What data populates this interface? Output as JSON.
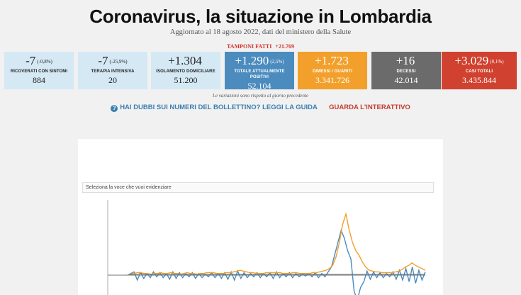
{
  "header": {
    "title": "Coronavirus, la situazione in Lombardia",
    "subtitle": "Aggiornato al 18 agosto 2022, dati del ministero della Salute",
    "tamponi_label": "TAMPONI FATTI",
    "tamponi_value": "+21.769"
  },
  "cards": [
    {
      "delta": "-7",
      "pct": "(-0,8%)",
      "label": "RICOVERATI CON SINTOMI",
      "total": "884",
      "color": "#d5e9f5"
    },
    {
      "delta": "-7",
      "pct": "(-25,9%)",
      "label": "TERAPIA INTENSIVA",
      "total": "20",
      "color": "#d5e9f5"
    },
    {
      "delta": "+1.304",
      "pct": "",
      "label": "ISOLAMENTO DOMICILIARE",
      "total": "51.200",
      "color": "#d5e9f5"
    },
    {
      "delta": "+1.290",
      "pct": "(2,5%)",
      "label": "TOTALE ATTUALMENTE POSITIVI",
      "total": "52.104",
      "color": "#4b8bbe"
    },
    {
      "delta": "+1.723",
      "pct": "",
      "label": "DIMESSI / GUARITI",
      "total": "3.341.726",
      "color": "#f2a02b"
    },
    {
      "delta": "+16",
      "pct": "",
      "label": "DECESSI",
      "total": "42.014",
      "color": "#6b6b6b"
    },
    {
      "delta": "+3.029",
      "pct": "(0,1%)",
      "label": "CASI TOTALI",
      "total": "3.435.844",
      "color": "#d0412f"
    }
  ],
  "note": "Le variazioni sono rispetto al giorno precedente",
  "links": {
    "guide": "HAI DUBBI SUI NUMERI DEL BOLLETTINO? LEGGI LA GUIDA",
    "interactive": "GUARDA L'INTERATTIVO"
  },
  "chart_panel": {
    "select_text": "Seleziona la voce che vuoi evidenziare"
  },
  "chart_data": {
    "type": "line",
    "title": "",
    "xlabel": "",
    "ylabel": "",
    "grid": false,
    "legend": "none",
    "series": [
      {
        "color": "#4b8bbe",
        "values": [
          0,
          2,
          4,
          -6,
          3,
          -4,
          2,
          -3,
          4,
          -2,
          3,
          -3,
          2,
          -5,
          4,
          -4,
          3,
          -3,
          2,
          -2,
          3,
          -4,
          2,
          -3,
          1,
          -2,
          3,
          -3,
          2,
          -4,
          3,
          -5,
          4,
          -6,
          5,
          -4,
          3,
          -3,
          2,
          -2,
          3,
          -3,
          2,
          -2,
          3,
          -4,
          4,
          -3,
          2,
          -2,
          3,
          -3,
          2,
          -2,
          1,
          -1,
          2,
          -2,
          3,
          -3,
          2,
          -2,
          4,
          10,
          25,
          40,
          55,
          45,
          30,
          20,
          -20,
          -30,
          -15,
          -8,
          5,
          -5,
          4,
          -3,
          3,
          -3,
          2,
          -2,
          4,
          -5,
          6,
          -6,
          8,
          -8,
          10,
          -10,
          6,
          -6,
          4
        ]
      },
      {
        "color": "#f2a02b",
        "values": [
          0,
          1,
          2,
          3,
          3,
          2,
          2,
          1,
          2,
          2,
          3,
          2,
          2,
          3,
          2,
          2,
          1,
          2,
          3,
          2,
          2,
          1,
          2,
          2,
          3,
          3,
          3,
          2,
          2,
          2,
          3,
          3,
          4,
          5,
          6,
          5,
          4,
          3,
          3,
          2,
          2,
          2,
          3,
          3,
          3,
          3,
          3,
          2,
          2,
          2,
          3,
          3,
          2,
          2,
          2,
          2,
          3,
          3,
          4,
          5,
          6,
          8,
          12,
          22,
          40,
          62,
          75,
          55,
          40,
          30,
          24,
          16,
          10,
          6,
          5,
          4,
          4,
          3,
          3,
          3,
          3,
          4,
          5,
          7,
          10,
          12,
          15,
          12,
          10,
          8,
          6
        ]
      },
      {
        "color": "#666666",
        "values": [
          0,
          1,
          1,
          1,
          2,
          1,
          1,
          1,
          1,
          1,
          1,
          1,
          1,
          1,
          1,
          1,
          1,
          1,
          1,
          1,
          1,
          1,
          1,
          1,
          1,
          1,
          1,
          1,
          1,
          1,
          1,
          1,
          1,
          1,
          1,
          1,
          1,
          1,
          1,
          1,
          1,
          1,
          1,
          1,
          1,
          1,
          1,
          1,
          1,
          1,
          1,
          1,
          1,
          1,
          1,
          1,
          1,
          1,
          1,
          1,
          1,
          1,
          1,
          1,
          1,
          1,
          1,
          1,
          1,
          1,
          1,
          1,
          1,
          1,
          1,
          1,
          1,
          1,
          1,
          1,
          1,
          1,
          1,
          1,
          1,
          1,
          1,
          1,
          1,
          1,
          1
        ]
      }
    ]
  }
}
